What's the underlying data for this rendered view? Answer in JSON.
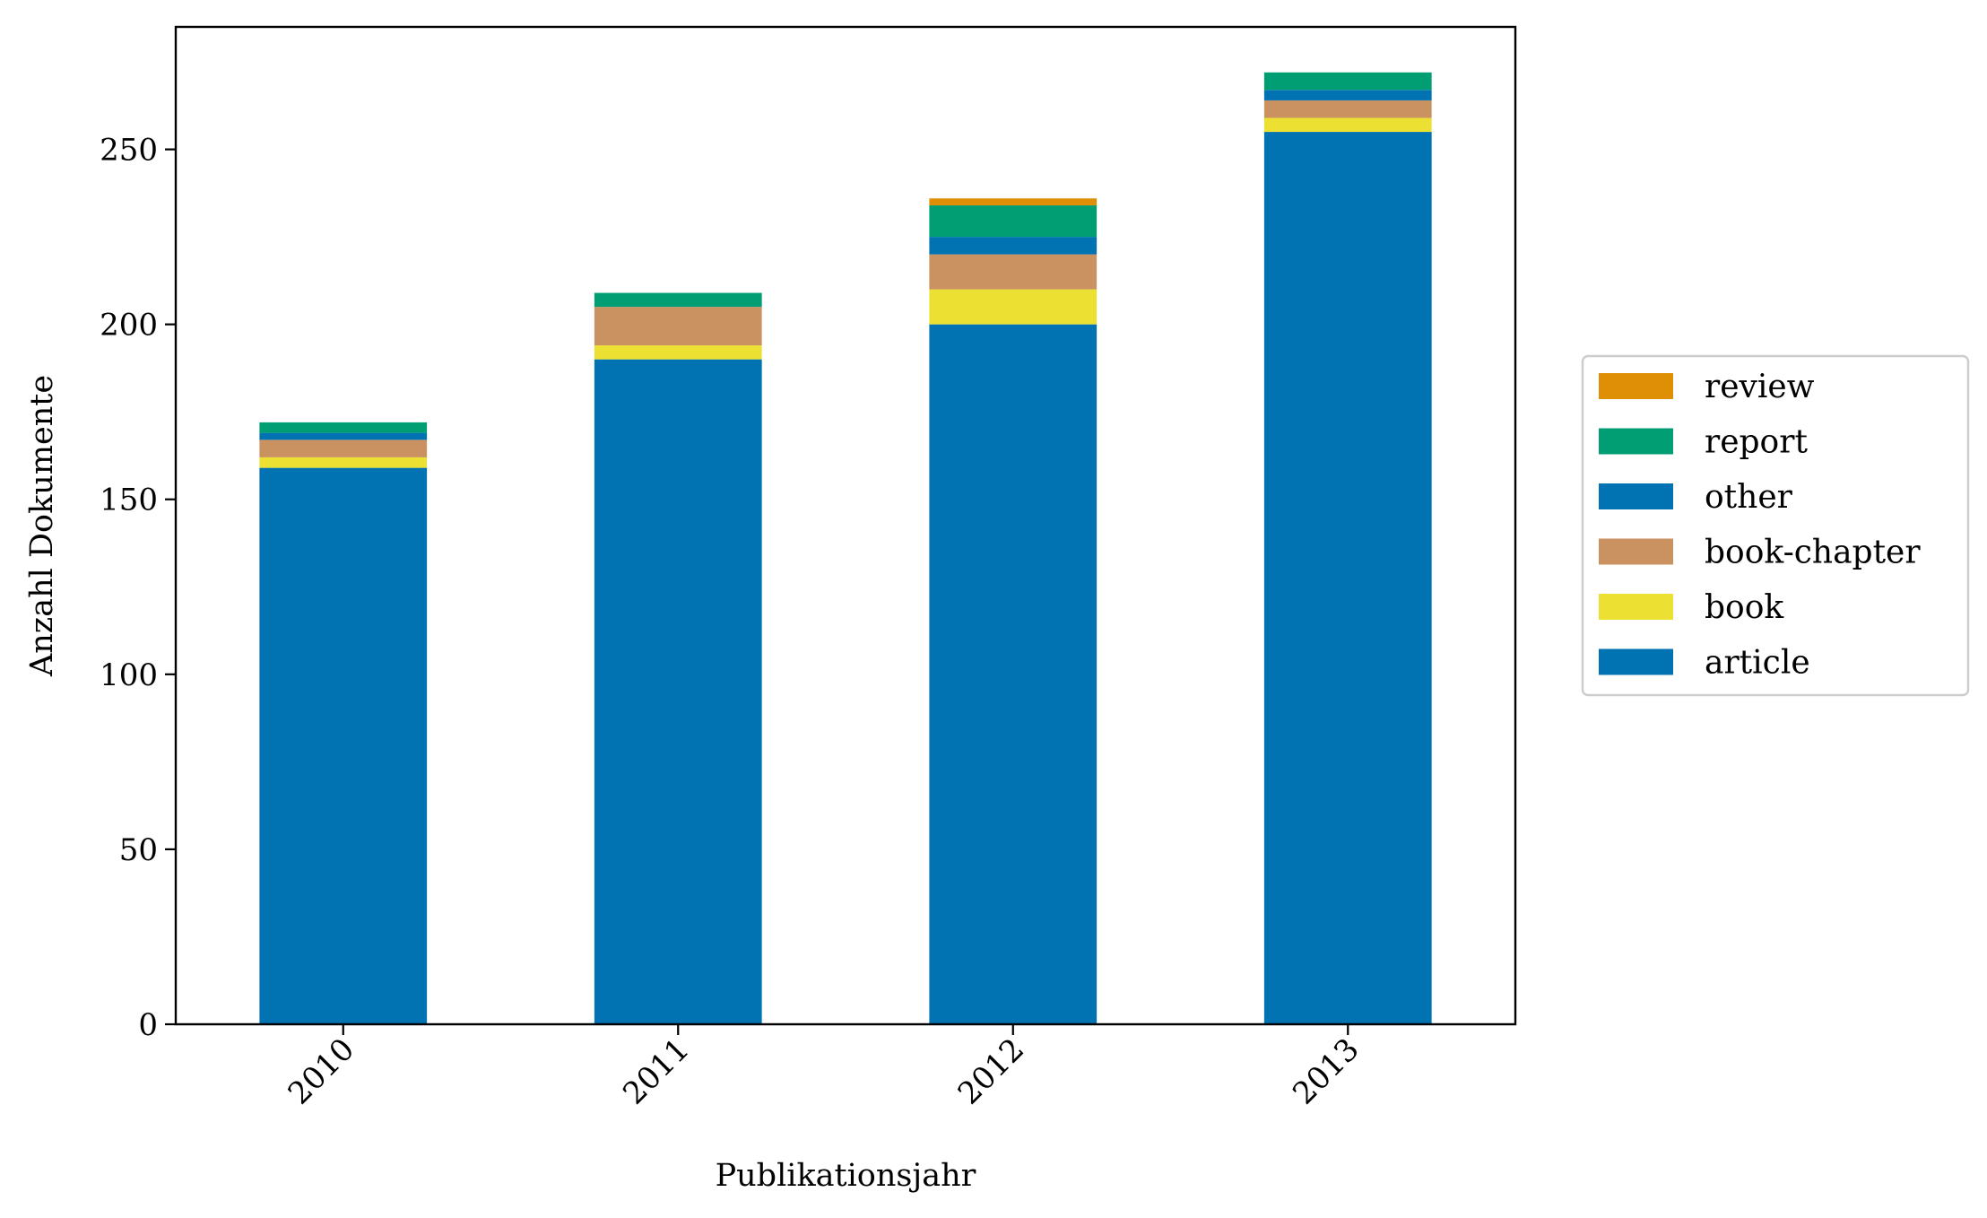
{
  "chart_data": {
    "type": "bar",
    "stacked": true,
    "title": "",
    "xlabel": "Publikationsjahr",
    "ylabel": "Anzahl Dokumente",
    "categories": [
      "2010",
      "2011",
      "2012",
      "2013"
    ],
    "ylim": [
      0,
      285
    ],
    "yticks": [
      0,
      50,
      100,
      150,
      200,
      250
    ],
    "grid": false,
    "legend_position": "right",
    "series": [
      {
        "name": "article",
        "color": "#0173b2",
        "values": [
          159,
          190,
          200,
          255
        ]
      },
      {
        "name": "book",
        "color": "#ece133",
        "values": [
          3,
          4,
          10,
          4
        ]
      },
      {
        "name": "book-chapter",
        "color": "#ca9161",
        "values": [
          5,
          11,
          10,
          5
        ]
      },
      {
        "name": "other",
        "color": "#0173b2",
        "values": [
          2,
          0,
          5,
          3
        ]
      },
      {
        "name": "report",
        "color": "#029e73",
        "values": [
          3,
          4,
          9,
          5
        ]
      },
      {
        "name": "review",
        "color": "#de8f05",
        "values": [
          0,
          0,
          2,
          0
        ]
      }
    ]
  }
}
